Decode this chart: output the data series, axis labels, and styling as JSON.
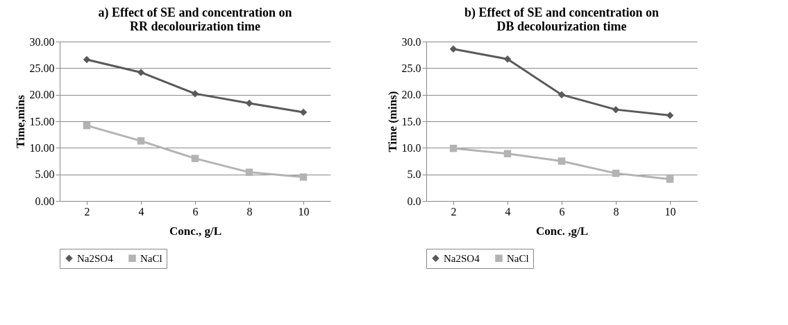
{
  "chart_data": [
    {
      "type": "line",
      "title": [
        "a) Effect of SE and concentration on",
        "RR decolourization time"
      ],
      "xlabel": "Conc., g/L",
      "ylabel": "Time,mins",
      "categories": [
        "2",
        "4",
        "6",
        "8",
        "10"
      ],
      "series": [
        {
          "name": "Na2SO4",
          "color": "#595959",
          "marker": "diamond",
          "values": [
            26.6,
            24.2,
            20.2,
            18.4,
            16.7
          ]
        },
        {
          "name": "NaCl",
          "color": "#b3b3b3",
          "marker": "square",
          "values": [
            14.2,
            11.3,
            8.0,
            5.4,
            4.5
          ]
        }
      ],
      "ylim": [
        0,
        30
      ],
      "yticks": [
        {
          "value": 0,
          "label": "0.00"
        },
        {
          "value": 5,
          "label": "5.00"
        },
        {
          "value": 10,
          "label": "10.00"
        },
        {
          "value": 15,
          "label": "15.00"
        },
        {
          "value": 20,
          "label": "20.00"
        },
        {
          "value": 25,
          "label": "25.00"
        },
        {
          "value": 30,
          "label": "30.00"
        }
      ],
      "grid": "y",
      "legend": "bottom",
      "line_style": "solid"
    },
    {
      "type": "line",
      "title": [
        "b) Effect of SE and concentration on",
        "DB decolourization time"
      ],
      "xlabel": "Conc. ,g/L",
      "ylabel": "Time (mins)",
      "categories": [
        "2",
        "4",
        "6",
        "8",
        "10"
      ],
      "series": [
        {
          "name": "Na2SO4",
          "color": "#595959",
          "marker": "diamond",
          "values": [
            28.6,
            26.7,
            20.0,
            17.2,
            16.1
          ]
        },
        {
          "name": "NaCl",
          "color": "#b3b3b3",
          "marker": "square",
          "values": [
            9.9,
            8.9,
            7.5,
            5.2,
            4.1
          ]
        }
      ],
      "ylim": [
        0,
        30
      ],
      "yticks": [
        {
          "value": 0,
          "label": "0.0"
        },
        {
          "value": 5,
          "label": "5.0"
        },
        {
          "value": 10,
          "label": "10.0"
        },
        {
          "value": 15,
          "label": "15.0"
        },
        {
          "value": 20,
          "label": "20.0"
        },
        {
          "value": 25,
          "label": "25.0"
        },
        {
          "value": 30,
          "label": "30.0"
        }
      ],
      "grid": "y",
      "legend": "bottom",
      "line_style": "solid"
    }
  ]
}
